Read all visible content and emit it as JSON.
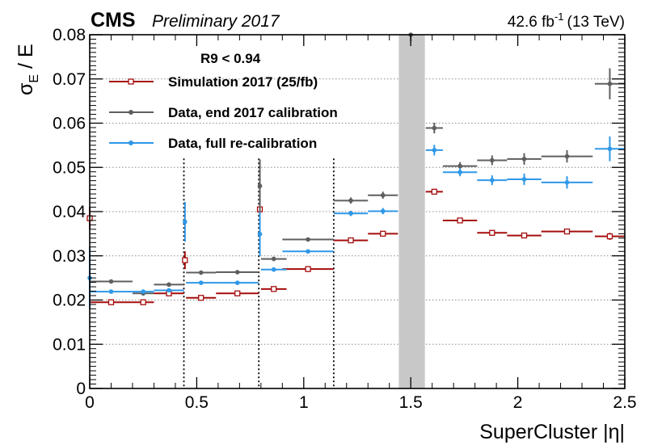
{
  "header": {
    "experiment": "CMS",
    "status": "Preliminary 2017",
    "lumi_value": "42.6 fb",
    "lumi_exponent": "-1",
    "lumi_energy": "(13 TeV)"
  },
  "colors": {
    "simulation": "#a50d0d",
    "data_old": "#5f5f5f",
    "data_new": "#2f98e8",
    "band": "#c8c8c8",
    "grid": "#8c8c8c"
  },
  "chart_data": {
    "type": "scatter",
    "title": "",
    "xlabel": "SuperCluster |η|",
    "ylabel_main": "σ",
    "ylabel_sub": "E",
    "ylabel_rest": " / E",
    "xlim": [
      0,
      2.5
    ],
    "ylim": [
      0,
      0.08
    ],
    "xticks": [
      0,
      0.5,
      1,
      1.5,
      2,
      2.5
    ],
    "xtick_labels": [
      "0",
      "0.5",
      "1",
      "1.5",
      "2",
      "2.5"
    ],
    "yticks": [
      0,
      0.01,
      0.02,
      0.03,
      0.04,
      0.05,
      0.06,
      0.07,
      0.08
    ],
    "ytick_labels": [
      "0",
      "0.01",
      "0.02",
      "0.03",
      "0.04",
      "0.05",
      "0.06",
      "0.07",
      "0.08"
    ],
    "grid": "horizontal dotted",
    "legend_title": "R9 < 0.94",
    "legend_position": "top-left",
    "module_boundaries": [
      0.44,
      0.79,
      1.14
    ],
    "gap_region": [
      1.4442,
      1.566
    ],
    "series": [
      {
        "name": "Simulation 2017 (25/fb)",
        "color_key": "simulation",
        "marker": "open-square",
        "points": [
          {
            "x": 0.0,
            "xerr": 0.003,
            "y": 0.0385,
            "yerr": 0.0025
          },
          {
            "x": 0.1,
            "xerr": 0.1,
            "y": 0.0195,
            "yerr": 0.0003
          },
          {
            "x": 0.25,
            "xerr": 0.05,
            "y": 0.0195,
            "yerr": 0.0003
          },
          {
            "x": 0.37,
            "xerr": 0.07,
            "y": 0.0215,
            "yerr": 0.0003
          },
          {
            "x": 0.445,
            "xerr": 0.005,
            "y": 0.029,
            "yerr": 0.002
          },
          {
            "x": 0.52,
            "xerr": 0.07,
            "y": 0.0205,
            "yerr": 0.0003
          },
          {
            "x": 0.69,
            "xerr": 0.1,
            "y": 0.0215,
            "yerr": 0.0003
          },
          {
            "x": 0.795,
            "xerr": 0.005,
            "y": 0.0405,
            "yerr": 0.003
          },
          {
            "x": 0.86,
            "xerr": 0.06,
            "y": 0.0225,
            "yerr": 0.0003
          },
          {
            "x": 1.02,
            "xerr": 0.12,
            "y": 0.027,
            "yerr": 0.0003
          },
          {
            "x": 1.22,
            "xerr": 0.08,
            "y": 0.0335,
            "yerr": 0.0004
          },
          {
            "x": 1.37,
            "xerr": 0.07,
            "y": 0.035,
            "yerr": 0.0004
          },
          {
            "x": 1.61,
            "xerr": 0.04,
            "y": 0.0445,
            "yerr": 0.0005
          },
          {
            "x": 1.73,
            "xerr": 0.08,
            "y": 0.038,
            "yerr": 0.0004
          },
          {
            "x": 1.88,
            "xerr": 0.07,
            "y": 0.0352,
            "yerr": 0.0004
          },
          {
            "x": 2.03,
            "xerr": 0.08,
            "y": 0.0346,
            "yerr": 0.0004
          },
          {
            "x": 2.23,
            "xerr": 0.12,
            "y": 0.0355,
            "yerr": 0.0004
          },
          {
            "x": 2.43,
            "xerr": 0.07,
            "y": 0.0344,
            "yerr": 0.0008
          }
        ]
      },
      {
        "name": "Data, end 2017 calibration",
        "color_key": "data_old",
        "marker": "filled-circle",
        "points": [
          {
            "x": 0.1,
            "xerr": 0.1,
            "y": 0.0242,
            "yerr": 0.0004
          },
          {
            "x": 0.25,
            "xerr": 0.05,
            "y": 0.0215,
            "yerr": 0.0004
          },
          {
            "x": 0.37,
            "xerr": 0.07,
            "y": 0.0235,
            "yerr": 0.0004
          },
          {
            "x": 0.52,
            "xerr": 0.07,
            "y": 0.0262,
            "yerr": 0.0004
          },
          {
            "x": 0.69,
            "xerr": 0.1,
            "y": 0.0263,
            "yerr": 0.0004
          },
          {
            "x": 0.795,
            "xerr": 0.005,
            "y": 0.0458,
            "yerr": 0.006
          },
          {
            "x": 0.86,
            "xerr": 0.06,
            "y": 0.0293,
            "yerr": 0.0005
          },
          {
            "x": 1.02,
            "xerr": 0.12,
            "y": 0.0337,
            "yerr": 0.0004
          },
          {
            "x": 1.22,
            "xerr": 0.08,
            "y": 0.0425,
            "yerr": 0.0007
          },
          {
            "x": 1.37,
            "xerr": 0.07,
            "y": 0.0437,
            "yerr": 0.0008
          },
          {
            "x": 1.5,
            "xerr": 0.005,
            "y": 0.08,
            "yerr": 0.0015
          },
          {
            "x": 1.61,
            "xerr": 0.04,
            "y": 0.0589,
            "yerr": 0.0012
          },
          {
            "x": 1.73,
            "xerr": 0.08,
            "y": 0.0503,
            "yerr": 0.0009
          },
          {
            "x": 1.88,
            "xerr": 0.07,
            "y": 0.0516,
            "yerr": 0.0011
          },
          {
            "x": 2.03,
            "xerr": 0.08,
            "y": 0.0519,
            "yerr": 0.0013
          },
          {
            "x": 2.23,
            "xerr": 0.12,
            "y": 0.0525,
            "yerr": 0.0014
          },
          {
            "x": 2.43,
            "xerr": 0.07,
            "y": 0.0689,
            "yerr": 0.0035
          }
        ]
      },
      {
        "name": "Data, full re-calibration",
        "color_key": "data_new",
        "marker": "filled-circle",
        "points": [
          {
            "x": 0.0,
            "xerr": 0.003,
            "y": 0.025,
            "yerr": 0.007
          },
          {
            "x": 0.1,
            "xerr": 0.1,
            "y": 0.0219,
            "yerr": 0.0004
          },
          {
            "x": 0.25,
            "xerr": 0.05,
            "y": 0.0219,
            "yerr": 0.0004
          },
          {
            "x": 0.37,
            "xerr": 0.07,
            "y": 0.0222,
            "yerr": 0.0004
          },
          {
            "x": 0.445,
            "xerr": 0.005,
            "y": 0.0377,
            "yerr": 0.0045
          },
          {
            "x": 0.52,
            "xerr": 0.07,
            "y": 0.0239,
            "yerr": 0.0004
          },
          {
            "x": 0.69,
            "xerr": 0.1,
            "y": 0.0239,
            "yerr": 0.0004
          },
          {
            "x": 0.795,
            "xerr": 0.005,
            "y": 0.0349,
            "yerr": 0.005
          },
          {
            "x": 0.86,
            "xerr": 0.06,
            "y": 0.0269,
            "yerr": 0.0005
          },
          {
            "x": 1.02,
            "xerr": 0.12,
            "y": 0.031,
            "yerr": 0.0004
          },
          {
            "x": 1.22,
            "xerr": 0.08,
            "y": 0.0396,
            "yerr": 0.0006
          },
          {
            "x": 1.37,
            "xerr": 0.07,
            "y": 0.0401,
            "yerr": 0.0007
          },
          {
            "x": 1.61,
            "xerr": 0.04,
            "y": 0.0539,
            "yerr": 0.0012
          },
          {
            "x": 1.73,
            "xerr": 0.08,
            "y": 0.0489,
            "yerr": 0.0009
          },
          {
            "x": 1.88,
            "xerr": 0.07,
            "y": 0.0471,
            "yerr": 0.0011
          },
          {
            "x": 2.03,
            "xerr": 0.08,
            "y": 0.0473,
            "yerr": 0.0013
          },
          {
            "x": 2.23,
            "xerr": 0.12,
            "y": 0.0466,
            "yerr": 0.0014
          },
          {
            "x": 2.43,
            "xerr": 0.07,
            "y": 0.0542,
            "yerr": 0.0028
          }
        ]
      }
    ]
  }
}
